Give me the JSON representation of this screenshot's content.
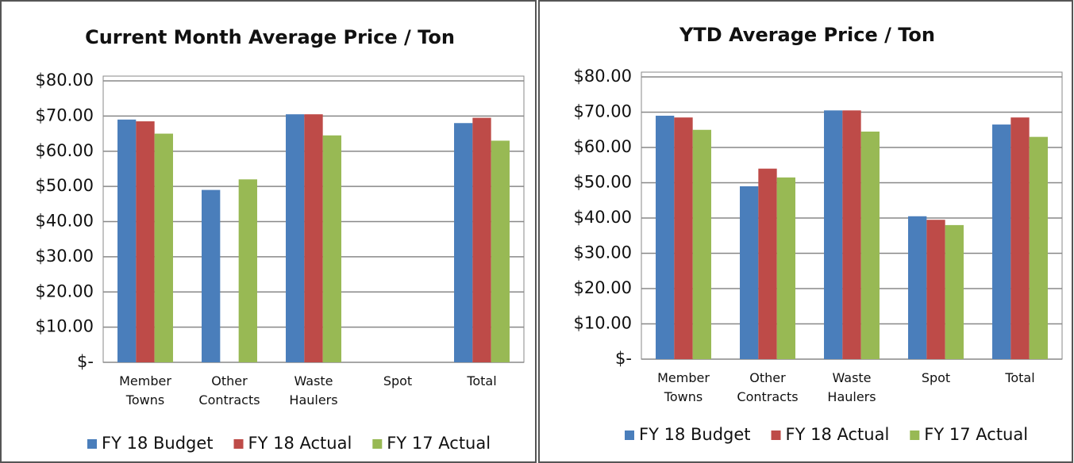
{
  "chart_data": [
    {
      "type": "bar",
      "title": "Current Month Average Price / Ton",
      "categories": [
        "Member Towns",
        "Other Contracts",
        "Waste Haulers",
        "Spot",
        "Total"
      ],
      "series": [
        {
          "name": "FY 18 Budget",
          "color": "#4a7ebb",
          "values": [
            69,
            49,
            70.5,
            null,
            68
          ]
        },
        {
          "name": "FY 18 Actual",
          "color": "#be4b48",
          "values": [
            68.5,
            null,
            70.5,
            null,
            69.5
          ]
        },
        {
          "name": "FY 17 Actual",
          "color": "#98b954",
          "values": [
            65,
            52,
            64.5,
            null,
            63
          ]
        }
      ],
      "ylim": [
        0,
        80
      ],
      "yticks": [
        {
          "value": 0,
          "label": "$-"
        },
        {
          "value": 10,
          "label": "$10.00"
        },
        {
          "value": 20,
          "label": "$20.00"
        },
        {
          "value": 30,
          "label": "$30.00"
        },
        {
          "value": 40,
          "label": "$40.00"
        },
        {
          "value": 50,
          "label": "$50.00"
        },
        {
          "value": 60,
          "label": "$60.00"
        },
        {
          "value": 70,
          "label": "$70.00"
        },
        {
          "value": 80,
          "label": "$80.00"
        }
      ],
      "grid": true,
      "legend": "bottom"
    },
    {
      "type": "bar",
      "title": "YTD Average Price / Ton",
      "categories": [
        "Member Towns",
        "Other Contracts",
        "Waste Haulers",
        "Spot",
        "Total"
      ],
      "series": [
        {
          "name": "FY 18 Budget",
          "color": "#4a7ebb",
          "values": [
            69,
            49,
            70.5,
            40.5,
            66.5
          ]
        },
        {
          "name": "FY 18 Actual",
          "color": "#be4b48",
          "values": [
            68.5,
            54,
            70.5,
            39.5,
            68.5
          ]
        },
        {
          "name": "FY 17 Actual",
          "color": "#98b954",
          "values": [
            65,
            51.5,
            64.5,
            38,
            63
          ]
        }
      ],
      "ylim": [
        0,
        80
      ],
      "yticks": [
        {
          "value": 0,
          "label": "$-"
        },
        {
          "value": 10,
          "label": "$10.00"
        },
        {
          "value": 20,
          "label": "$20.00"
        },
        {
          "value": 30,
          "label": "$30.00"
        },
        {
          "value": 40,
          "label": "$40.00"
        },
        {
          "value": 50,
          "label": "$50.00"
        },
        {
          "value": 60,
          "label": "$60.00"
        },
        {
          "value": 70,
          "label": "$70.00"
        },
        {
          "value": 80,
          "label": "$80.00"
        }
      ],
      "grid": true,
      "legend": "bottom"
    }
  ]
}
